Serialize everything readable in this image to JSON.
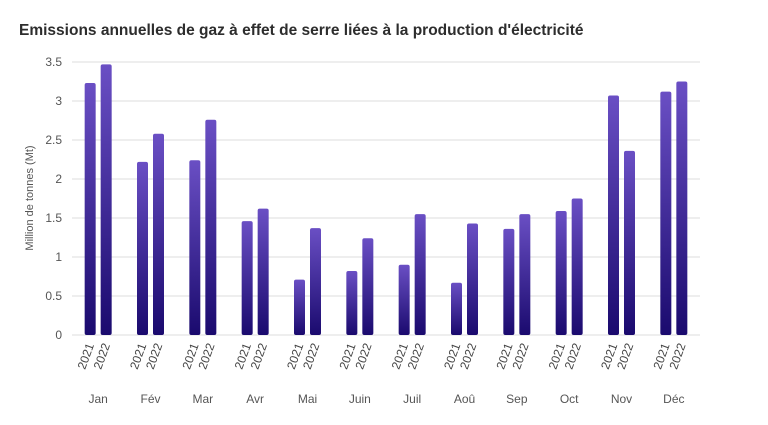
{
  "title": "Emissions annuelles de gaz à effet de serre liées à la production d'électricité",
  "chart_data": {
    "type": "bar",
    "title": "Emissions annuelles de gaz à effet de serre liées à la production d'électricité",
    "xlabel": "",
    "ylabel": "Million de tonnes (Mt)",
    "ylim": [
      0,
      3.5
    ],
    "yticks": [
      "0",
      "0.5",
      "1",
      "1.5",
      "2",
      "2.5",
      "3",
      "3.5"
    ],
    "grid": true,
    "categories": [
      "Jan",
      "Fév",
      "Mar",
      "Avr",
      "Mai",
      "Juin",
      "Juil",
      "Aoû",
      "Sep",
      "Oct",
      "Nov",
      "Déc"
    ],
    "series": [
      {
        "name": "2021",
        "values": [
          3.23,
          2.22,
          2.24,
          1.46,
          0.71,
          0.82,
          0.9,
          0.67,
          1.36,
          1.59,
          3.07,
          3.12
        ]
      },
      {
        "name": "2022",
        "values": [
          3.47,
          2.58,
          2.76,
          1.62,
          1.37,
          1.24,
          1.55,
          1.43,
          1.55,
          1.75,
          2.36,
          3.25
        ]
      }
    ],
    "colors": {
      "bar_top": "#6a4fc4",
      "bar_bottom": "#1a0a6e",
      "grid": "#dcdcdc"
    }
  }
}
